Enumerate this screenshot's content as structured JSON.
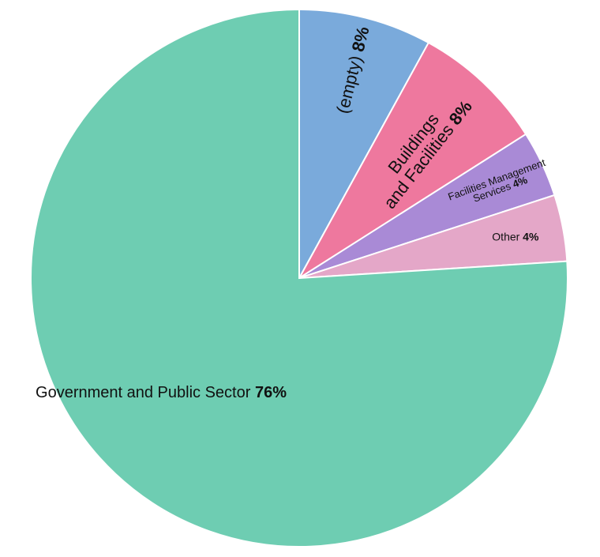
{
  "chart_data": {
    "type": "pie",
    "title": "",
    "start_angle_deg": 0,
    "direction": "clockwise",
    "slices": [
      {
        "label": "(empty)",
        "label_lines": [
          "(empty)"
        ],
        "percent_label": "8%",
        "value": 8,
        "color": "#7aaadb"
      },
      {
        "label": "Buildings and Facilities",
        "label_lines": [
          "Buildings",
          "and Facilities"
        ],
        "percent_label": "8%",
        "value": 8,
        "color": "#ee789e"
      },
      {
        "label": "Facilities Management Services",
        "label_lines": [
          "Facilities Management",
          "Services"
        ],
        "percent_label": "4%",
        "value": 4,
        "color": "#a98ad6"
      },
      {
        "label": "Other",
        "label_lines": [
          "Other"
        ],
        "percent_label": "4%",
        "value": 4,
        "color": "#e4a7c8"
      },
      {
        "label": "Government and Public Sector",
        "label_lines": [
          "Government and Public Sector"
        ],
        "percent_label": "76%",
        "value": 76,
        "color": "#6ecdb2"
      }
    ]
  }
}
